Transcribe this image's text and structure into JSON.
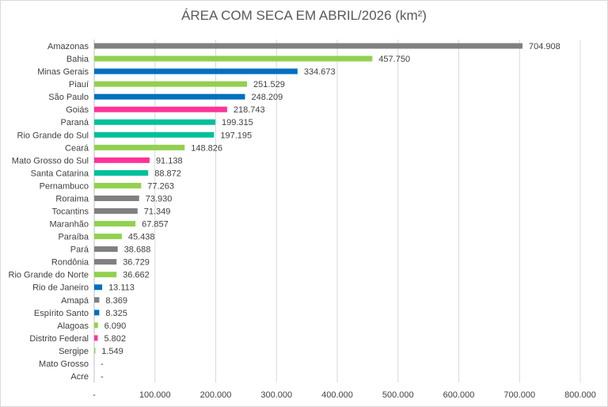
{
  "chart_data": {
    "type": "bar",
    "orientation": "horizontal",
    "title": "ÁREA COM SECA EM ABRIL/2026 (km²)",
    "xlim": [
      0,
      800000
    ],
    "x_ticks": [
      0,
      100000,
      200000,
      300000,
      400000,
      500000,
      600000,
      700000,
      800000
    ],
    "x_tick_labels": [
      "-",
      "100.000",
      "200.000",
      "300.000",
      "400.000",
      "500.000",
      "600.000",
      "700.000",
      "800.000"
    ],
    "grid": "vertical",
    "categories": [
      "Amazonas",
      "Bahia",
      "Minas Gerais",
      "Piauí",
      "São Paulo",
      "Goiás",
      "Paraná",
      "Rio Grande do Sul",
      "Ceará",
      "Mato Grosso do Sul",
      "Santa Catarina",
      "Pernambuco",
      "Roraima",
      "Tocantins",
      "Maranhão",
      "Paraíba",
      "Pará",
      "Rondônia",
      "Rio Grande do Norte",
      "Rio de Janeiro",
      "Amapá",
      "Espírito Santo",
      "Alagoas",
      "Distrito Federal",
      "Sergipe",
      "Mato Grosso",
      "Acre"
    ],
    "values": [
      704908,
      457750,
      334673,
      251529,
      248209,
      218743,
      199315,
      197195,
      148826,
      91138,
      88872,
      77263,
      73930,
      71349,
      67857,
      45438,
      38688,
      36729,
      36662,
      13113,
      8369,
      8325,
      6090,
      5802,
      1549,
      0,
      0
    ],
    "value_labels": [
      "704.908",
      "457.750",
      "334.673",
      "251.529",
      "248.209",
      "218.743",
      "199.315",
      "197.195",
      "148.826",
      "91.138",
      "88.872",
      "77.263",
      "73.930",
      "71.349",
      "67.857",
      "45.438",
      "38.688",
      "36.729",
      "36.662",
      "13.113",
      "8.369",
      "8.325",
      "6.090",
      "5.802",
      "1.549",
      "-",
      "-"
    ],
    "colors": [
      "#808080",
      "#92d050",
      "#0070c0",
      "#92d050",
      "#0070c0",
      "#ff3399",
      "#00c09a",
      "#00c09a",
      "#92d050",
      "#ff3399",
      "#00c09a",
      "#92d050",
      "#808080",
      "#808080",
      "#92d050",
      "#92d050",
      "#808080",
      "#808080",
      "#92d050",
      "#0070c0",
      "#808080",
      "#0070c0",
      "#92d050",
      "#ff3399",
      "#92d050",
      "#808080",
      "#808080"
    ]
  }
}
